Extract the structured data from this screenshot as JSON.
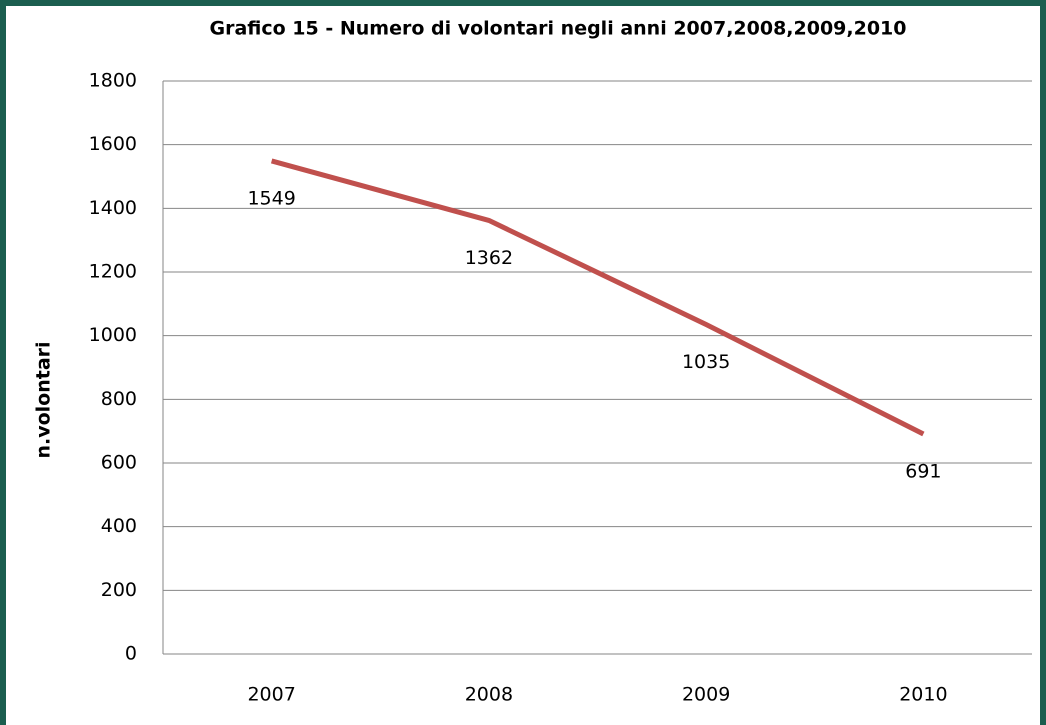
{
  "chart_data": {
    "type": "line",
    "title": "Grafico 15 - Numero di volontari negli anni 2007,2008,2009,2010",
    "y_label": "n.volontari",
    "categories": [
      "2007",
      "2008",
      "2009",
      "2010"
    ],
    "series": [
      {
        "name": "n.volontari",
        "color": "#c0504d",
        "values": [
          1549,
          1362,
          1035,
          691
        ]
      }
    ],
    "ylim": [
      0,
      1800
    ],
    "yticks": [
      0,
      200,
      400,
      600,
      800,
      1000,
      1200,
      1400,
      1600,
      1800
    ],
    "grid": true
  }
}
